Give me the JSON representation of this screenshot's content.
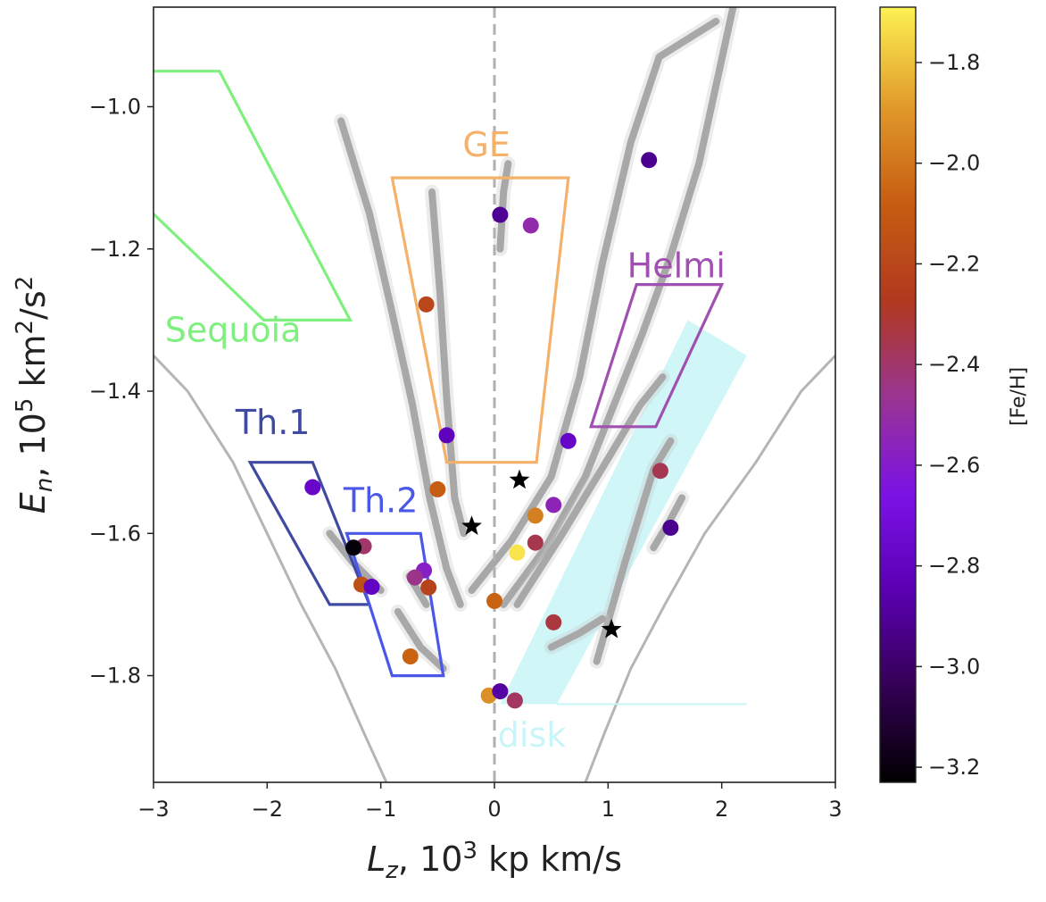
{
  "chart_data": {
    "type": "scatter",
    "xlabel_html": [
      "L",
      "z",
      ", 10",
      "3",
      " kp km/s"
    ],
    "ylabel_html": [
      "E",
      "n",
      ", 10",
      "5",
      " km",
      "2",
      "/s",
      "2"
    ],
    "xlim": [
      -3,
      3
    ],
    "ylim": [
      -1.95,
      -0.86
    ],
    "xticks": [
      -3,
      -2,
      -1,
      0,
      1,
      2,
      3
    ],
    "xtick_labels": [
      "−3",
      "−2",
      "−1",
      "0",
      "1",
      "2",
      "3"
    ],
    "yticks": [
      -1.8,
      -1.6,
      -1.4,
      -1.2,
      -1.0
    ],
    "ytick_labels": [
      "−1.8",
      "−1.6",
      "−1.4",
      "−1.2",
      "−1.0"
    ],
    "colorbar": {
      "label": "[Fe/H]",
      "range": [
        -3.23,
        -1.69
      ],
      "colormap": "gnuplot",
      "ticks": [
        -3.2,
        -3.0,
        -2.8,
        -2.6,
        -2.4,
        -2.2,
        -2.0,
        -1.8
      ],
      "tick_labels": [
        "−3.2",
        "−3.0",
        "−2.8",
        "−2.6",
        "−2.4",
        "−2.2",
        "−2.0",
        "−1.8"
      ]
    },
    "regions": [
      {
        "label": "Sequoia",
        "color": "#7ff07f",
        "label_pos": [
          -2.3,
          -1.33
        ],
        "polygon": [
          [
            -3.2,
            -0.95
          ],
          [
            -2.42,
            -0.95
          ],
          [
            -1.27,
            -1.3
          ],
          [
            -2.03,
            -1.3
          ],
          [
            -3.2,
            -1.12
          ]
        ]
      },
      {
        "label": "GE",
        "color": "#f5b06a",
        "label_pos": [
          -0.07,
          -1.07
        ],
        "polygon": [
          [
            -0.9,
            -1.1
          ],
          [
            0.65,
            -1.1
          ],
          [
            0.37,
            -1.5
          ],
          [
            -0.42,
            -1.5
          ]
        ]
      },
      {
        "label": "Helmi",
        "color": "#a050b0",
        "label_pos": [
          1.6,
          -1.24
        ],
        "polygon": [
          [
            1.25,
            -1.25
          ],
          [
            2.0,
            -1.25
          ],
          [
            1.42,
            -1.45
          ],
          [
            0.85,
            -1.45
          ]
        ]
      },
      {
        "label": "Th.1",
        "color": "#3f4aa0",
        "label_pos": [
          -1.95,
          -1.46
        ],
        "polygon": [
          [
            -2.15,
            -1.5
          ],
          [
            -1.6,
            -1.5
          ],
          [
            -1.1,
            -1.7
          ],
          [
            -1.45,
            -1.7
          ]
        ]
      },
      {
        "label": "Th.2",
        "color": "#4a57e8",
        "label_pos": [
          -1.0,
          -1.57
        ],
        "polygon": [
          [
            -1.3,
            -1.6
          ],
          [
            -0.65,
            -1.6
          ],
          [
            -0.45,
            -1.8
          ],
          [
            -0.9,
            -1.8
          ]
        ]
      }
    ],
    "disk": {
      "label": "disk",
      "color": "#c8f5f7",
      "label_pos": [
        0.33,
        -1.9
      ],
      "polygon": [
        [
          1.7,
          -1.3
        ],
        [
          2.22,
          -1.35
        ],
        [
          0.55,
          -1.84
        ],
        [
          0.05,
          -1.84
        ]
      ]
    },
    "boundary_left": [
      [
        -3,
        -1.35
      ],
      [
        -2.7,
        -1.4
      ],
      [
        -2.3,
        -1.5
      ],
      [
        -2.0,
        -1.6
      ],
      [
        -1.7,
        -1.7
      ],
      [
        -1.4,
        -1.79
      ],
      [
        -1.15,
        -1.88
      ],
      [
        -0.95,
        -1.95
      ]
    ],
    "boundary_right": [
      [
        3,
        -1.35
      ],
      [
        2.7,
        -1.4
      ],
      [
        2.3,
        -1.5
      ],
      [
        1.85,
        -1.6
      ],
      [
        1.5,
        -1.7
      ],
      [
        1.2,
        -1.79
      ],
      [
        0.97,
        -1.88
      ],
      [
        0.8,
        -1.95
      ]
    ],
    "orbit_streaks": [
      {
        "points": [
          [
            -1.35,
            -1.02
          ],
          [
            -1.1,
            -1.15
          ],
          [
            -0.9,
            -1.29
          ],
          [
            -0.72,
            -1.42
          ],
          [
            -0.57,
            -1.55
          ],
          [
            -0.42,
            -1.65
          ],
          [
            -0.3,
            -1.7
          ]
        ]
      },
      {
        "points": [
          [
            -0.55,
            -1.12
          ],
          [
            -0.48,
            -1.26
          ],
          [
            -0.42,
            -1.41
          ],
          [
            -0.35,
            -1.55
          ],
          [
            -0.27,
            -1.6
          ]
        ]
      },
      {
        "points": [
          [
            0.05,
            -1.2
          ],
          [
            0.08,
            -1.12
          ],
          [
            0.12,
            -1.08
          ]
        ]
      },
      {
        "points": [
          [
            -0.2,
            -1.68
          ],
          [
            0.15,
            -1.61
          ],
          [
            0.5,
            -1.52
          ],
          [
            0.75,
            -1.38
          ],
          [
            0.95,
            -1.22
          ],
          [
            1.2,
            -1.05
          ],
          [
            1.45,
            -0.93
          ],
          [
            1.95,
            -0.88
          ]
        ]
      },
      {
        "points": [
          [
            0.08,
            -1.7
          ],
          [
            0.45,
            -1.62
          ],
          [
            0.8,
            -1.52
          ],
          [
            1.05,
            -1.42
          ],
          [
            1.3,
            -1.32
          ],
          [
            1.55,
            -1.21
          ],
          [
            1.8,
            -1.08
          ],
          [
            2.1,
            -0.86
          ]
        ]
      },
      {
        "points": [
          [
            0.2,
            -1.7
          ],
          [
            0.6,
            -1.6
          ],
          [
            0.98,
            -1.5
          ],
          [
            1.28,
            -1.42
          ],
          [
            1.48,
            -1.38
          ]
        ]
      },
      {
        "points": [
          [
            0.9,
            -1.78
          ],
          [
            1.15,
            -1.64
          ],
          [
            1.4,
            -1.51
          ],
          [
            1.55,
            -1.47
          ]
        ]
      },
      {
        "points": [
          [
            0.5,
            -1.76
          ],
          [
            0.75,
            -1.74
          ],
          [
            0.95,
            -1.72
          ]
        ]
      },
      {
        "points": [
          [
            1.4,
            -1.62
          ],
          [
            1.55,
            -1.58
          ],
          [
            1.65,
            -1.55
          ]
        ]
      },
      {
        "points": [
          [
            -1.45,
            -1.6
          ],
          [
            -1.25,
            -1.64
          ],
          [
            -1.0,
            -1.68
          ]
        ]
      },
      {
        "points": [
          [
            -0.85,
            -1.71
          ],
          [
            -0.65,
            -1.76
          ],
          [
            -0.45,
            -1.79
          ]
        ]
      },
      {
        "points": [
          [
            -0.75,
            -1.66
          ],
          [
            -0.6,
            -1.7
          ]
        ]
      }
    ],
    "stars": [
      {
        "x": -0.2,
        "y": -1.59
      },
      {
        "x": 0.22,
        "y": -1.525
      },
      {
        "x": 1.03,
        "y": -1.735
      }
    ],
    "points": [
      {
        "x": 1.36,
        "y": -1.075,
        "feh": -2.92
      },
      {
        "x": 0.05,
        "y": -1.152,
        "feh": -2.91
      },
      {
        "x": 0.32,
        "y": -1.167,
        "feh": -2.52
      },
      {
        "x": -0.6,
        "y": -1.278,
        "feh": -2.2
      },
      {
        "x": -0.42,
        "y": -1.462,
        "feh": -2.82
      },
      {
        "x": 0.65,
        "y": -1.47,
        "feh": -2.78
      },
      {
        "x": 1.46,
        "y": -1.512,
        "feh": -2.36
      },
      {
        "x": -1.6,
        "y": -1.535,
        "feh": -2.77
      },
      {
        "x": -0.5,
        "y": -1.538,
        "feh": -2.08
      },
      {
        "x": 0.52,
        "y": -1.56,
        "feh": -2.55
      },
      {
        "x": 0.36,
        "y": -1.575,
        "feh": -1.97
      },
      {
        "x": 1.55,
        "y": -1.592,
        "feh": -2.92
      },
      {
        "x": 0.36,
        "y": -1.613,
        "feh": -2.35
      },
      {
        "x": -1.15,
        "y": -1.618,
        "feh": -2.4
      },
      {
        "x": -1.24,
        "y": -1.62,
        "feh": -3.21
      },
      {
        "x": 0.2,
        "y": -1.627,
        "feh": -1.72
      },
      {
        "x": -0.62,
        "y": -1.652,
        "feh": -2.58
      },
      {
        "x": -0.7,
        "y": -1.662,
        "feh": -2.45
      },
      {
        "x": -1.17,
        "y": -1.672,
        "feh": -2.15
      },
      {
        "x": -1.08,
        "y": -1.675,
        "feh": -2.8
      },
      {
        "x": -0.58,
        "y": -1.676,
        "feh": -2.22
      },
      {
        "x": 0.0,
        "y": -1.695,
        "feh": -2.06
      },
      {
        "x": 0.52,
        "y": -1.725,
        "feh": -2.33
      },
      {
        "x": -0.74,
        "y": -1.773,
        "feh": -2.06
      },
      {
        "x": -0.05,
        "y": -1.828,
        "feh": -1.92
      },
      {
        "x": 0.05,
        "y": -1.822,
        "feh": -2.88
      },
      {
        "x": 0.18,
        "y": -1.835,
        "feh": -2.38
      }
    ]
  }
}
